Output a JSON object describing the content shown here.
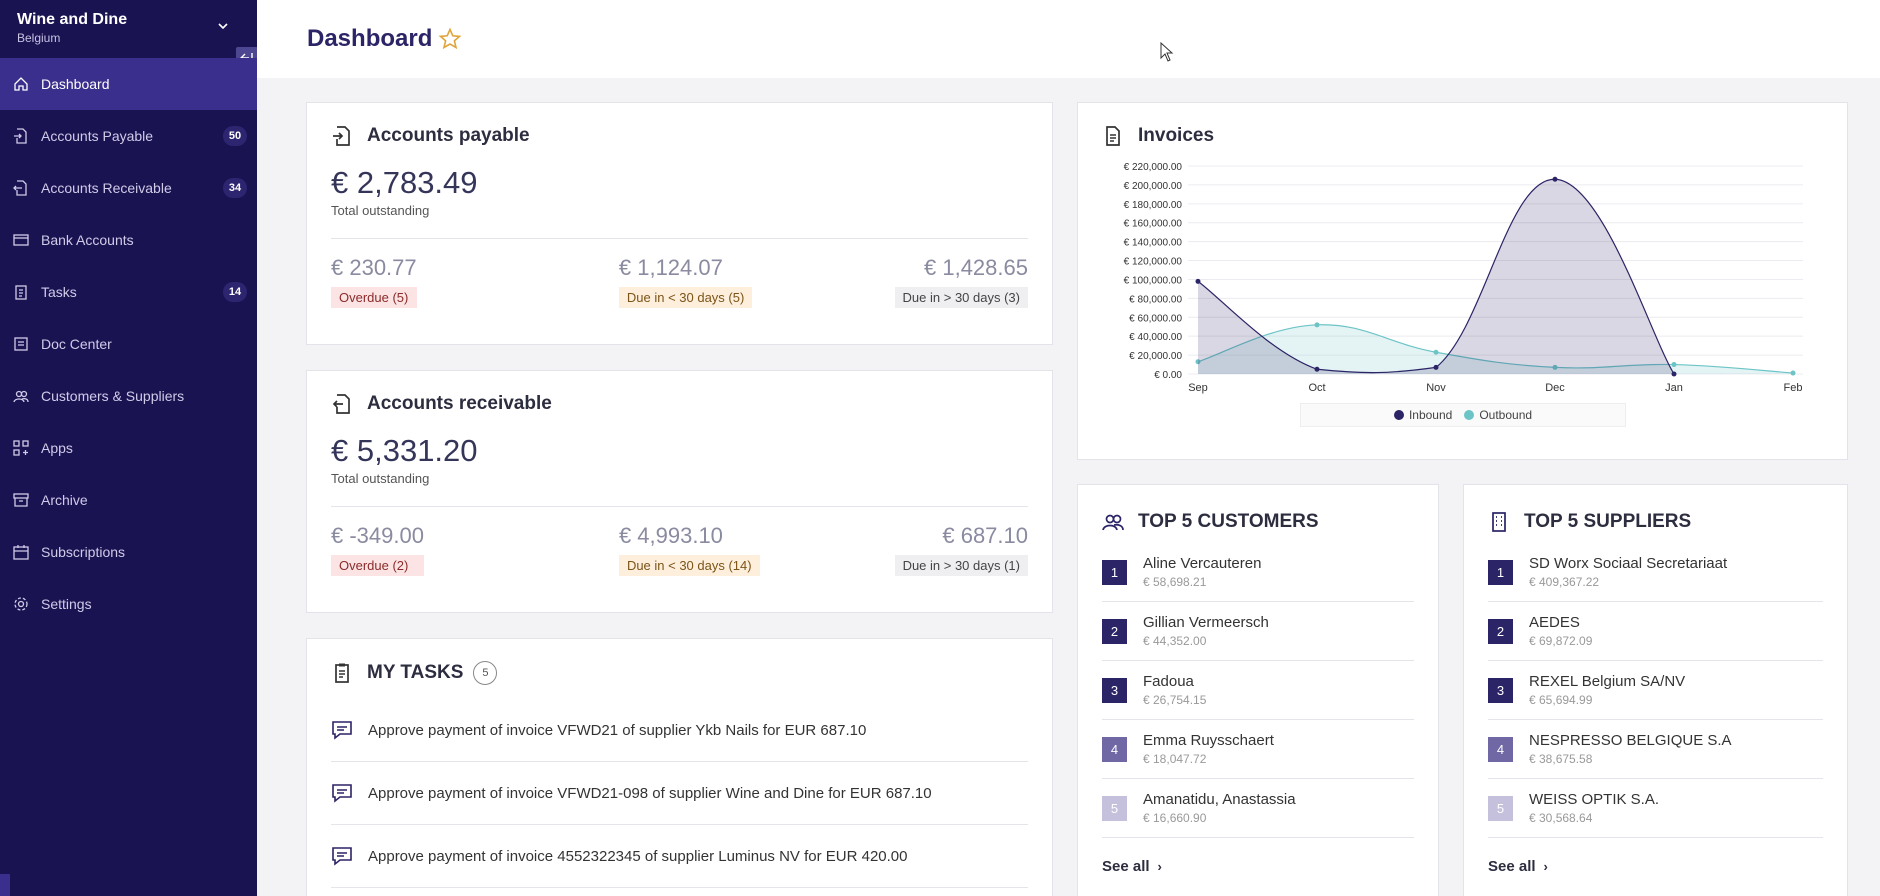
{
  "org": {
    "name": "Wine and Dine",
    "country": "Belgium"
  },
  "nav": [
    {
      "label": "Dashboard",
      "badge": "",
      "icon": "home-icon"
    },
    {
      "label": "Accounts Payable",
      "badge": "50",
      "icon": "file-in-icon"
    },
    {
      "label": "Accounts Receivable",
      "badge": "34",
      "icon": "file-out-icon"
    },
    {
      "label": "Bank Accounts",
      "badge": "",
      "icon": "card-icon"
    },
    {
      "label": "Tasks",
      "badge": "14",
      "icon": "clipboard-icon"
    },
    {
      "label": "Doc Center",
      "badge": "",
      "icon": "doc-center-icon"
    },
    {
      "label": "Customers & Suppliers",
      "badge": "",
      "icon": "users-icon"
    },
    {
      "label": "Apps",
      "badge": "",
      "icon": "apps-icon"
    },
    {
      "label": "Archive",
      "badge": "",
      "icon": "archive-icon"
    },
    {
      "label": "Subscriptions",
      "badge": "",
      "icon": "calendar-icon"
    },
    {
      "label": "Settings",
      "badge": "",
      "icon": "gear-icon"
    }
  ],
  "header": {
    "title": "Dashboard"
  },
  "payable": {
    "title": "Accounts payable",
    "total": "€ 2,783.49",
    "total_label": "Total outstanding",
    "overdue_amount": "€ 230.77",
    "overdue_label": "Overdue (5)",
    "due_soon_amount": "€ 1,124.07",
    "due_soon_label": "Due in < 30 days (5)",
    "due_later_amount": "€ 1,428.65",
    "due_later_label": "Due in > 30 days (3)"
  },
  "receivable": {
    "title": "Accounts receivable",
    "total": "€ 5,331.20",
    "total_label": "Total outstanding",
    "overdue_amount": "€ -349.00",
    "overdue_label": "Overdue (2)",
    "due_soon_amount": "€ 4,993.10",
    "due_soon_label": "Due in < 30 days (14)",
    "due_later_amount": "€ 687.10",
    "due_later_label": "Due in > 30 days (1)"
  },
  "tasks": {
    "title": "MY TASKS",
    "count": "5",
    "items": [
      "Approve payment of invoice VFWD21 of supplier Ykb Nails for EUR 687.10",
      "Approve payment of invoice VFWD21-098 of supplier Wine and Dine for EUR 687.10",
      "Approve payment of invoice 4552322345 of supplier Luminus NV for EUR 420.00"
    ]
  },
  "invoices_title": "Invoices",
  "chart_data": {
    "type": "area",
    "categories": [
      "Sep",
      "Oct",
      "Nov",
      "Dec",
      "Jan",
      "Feb"
    ],
    "series": [
      {
        "name": "Inbound",
        "color": "#2b2466",
        "values": [
          98000,
          5000,
          7000,
          206000,
          0,
          null
        ]
      },
      {
        "name": "Outbound",
        "color": "#6cc4c6",
        "values": [
          13000,
          52000,
          23000,
          7000,
          10000,
          1000
        ]
      }
    ],
    "ylim": [
      0,
      220000
    ],
    "yticks": [
      "€ 0.00",
      "€ 20,000.00",
      "€ 40,000.00",
      "€ 60,000.00",
      "€ 80,000.00",
      "€ 100,000.00",
      "€ 120,000.00",
      "€ 140,000.00",
      "€ 160,000.00",
      "€ 180,000.00",
      "€ 200,000.00",
      "€ 220,000.00"
    ],
    "grid": true,
    "legend": "bottom"
  },
  "customers": {
    "title": "TOP 5 CUSTOMERS",
    "items": [
      {
        "rank": "1",
        "name": "Aline Vercauteren",
        "value": "€ 58,698.21"
      },
      {
        "rank": "2",
        "name": "Gillian Vermeersch",
        "value": "€ 44,352.00"
      },
      {
        "rank": "3",
        "name": "Fadoua",
        "value": "€ 26,754.15"
      },
      {
        "rank": "4",
        "name": "Emma Ruysschaert",
        "value": "€ 18,047.72"
      },
      {
        "rank": "5",
        "name": "Amanatidu, Anastassia",
        "value": "€ 16,660.90"
      }
    ],
    "see_all": "See all"
  },
  "suppliers": {
    "title": "TOP 5 SUPPLIERS",
    "items": [
      {
        "rank": "1",
        "name": "SD Worx Sociaal Secretariaat",
        "value": "€ 409,367.22"
      },
      {
        "rank": "2",
        "name": "AEDES",
        "value": "€ 69,872.09"
      },
      {
        "rank": "3",
        "name": "REXEL Belgium SA/NV",
        "value": "€ 65,694.99"
      },
      {
        "rank": "4",
        "name": "NESPRESSO BELGIQUE S.A",
        "value": "€ 38,675.58"
      },
      {
        "rank": "5",
        "name": "WEISS OPTIK S.A.",
        "value": "€ 30,568.64"
      }
    ],
    "see_all": "See all"
  }
}
